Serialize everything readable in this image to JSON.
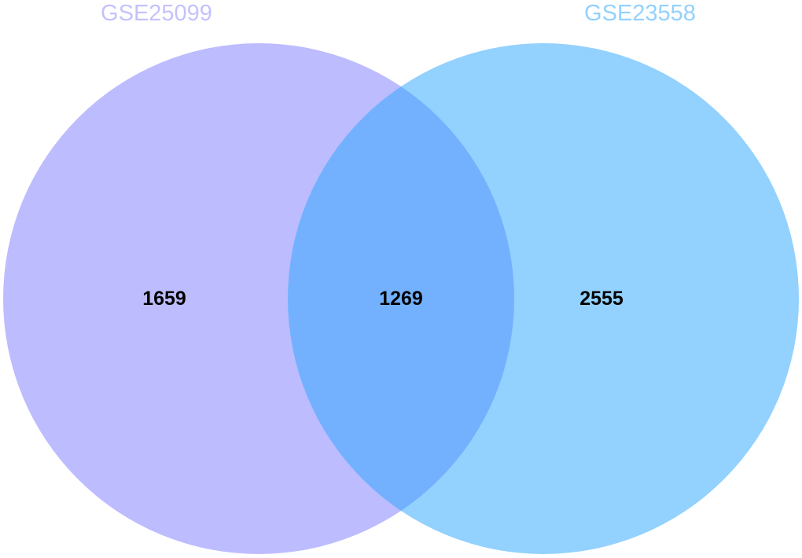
{
  "venn": {
    "sets": [
      {
        "id": "A",
        "name": "GSE25099",
        "color": "#bdbcff",
        "label_color": "#c4c2fc"
      },
      {
        "id": "B",
        "name": "GSE23558",
        "color": "#93d1fe",
        "label_color": "#93d1fe"
      }
    ],
    "overlap_color": "#73b1ff",
    "regions": {
      "only_a": "1659",
      "both": "1269",
      "only_b": "2555"
    }
  }
}
